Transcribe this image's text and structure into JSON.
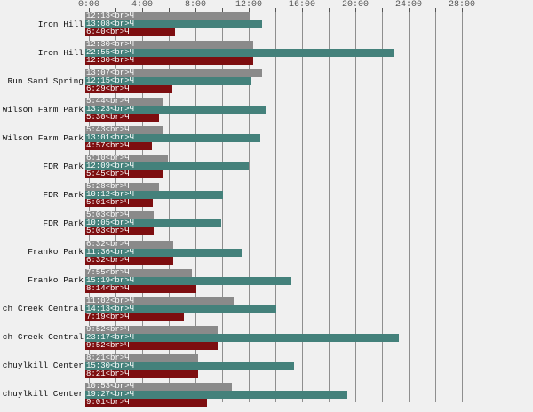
{
  "chart_data": {
    "type": "bar",
    "orientation": "horizontal",
    "title": "",
    "xlabel": "",
    "ylabel": "",
    "x_axis": {
      "tick_labels": [
        "0:00",
        "4:00",
        "8:00",
        "12:00",
        "16:00",
        "20:00",
        "24:00",
        "28:00"
      ],
      "major_interval_hours": 4,
      "minor_interval_hours": 2,
      "xlim_hours": [
        0,
        28
      ],
      "grid": "on"
    },
    "bar_label_suffix": "<br>Ч",
    "rows": [
      {
        "category": "Iron Hill",
        "values": [
          "12:13",
          "13:08",
          "6:40"
        ]
      },
      {
        "category": "Iron Hill",
        "values": [
          "12:30",
          "22:55",
          "12:30"
        ]
      },
      {
        "category": "Run Sand Spring",
        "values": [
          "13:07",
          "12:15",
          "6:29"
        ]
      },
      {
        "category": "Wilson Farm Park",
        "values": [
          "5:44",
          "13:23",
          "5:30"
        ]
      },
      {
        "category": "Wilson Farm Park",
        "values": [
          "5:43",
          "13:01",
          "4:57"
        ]
      },
      {
        "category": "FDR Park",
        "values": [
          "6:10",
          "12:09",
          "5:45"
        ]
      },
      {
        "category": "FDR Park",
        "values": [
          "5:28",
          "10:12",
          "5:01"
        ]
      },
      {
        "category": "FDR Park",
        "values": [
          "5:03",
          "10:05",
          "5:03"
        ]
      },
      {
        "category": "Franko Park",
        "values": [
          "6:32",
          "11:36",
          "6:32"
        ]
      },
      {
        "category": "Franko Park",
        "values": [
          "7:55",
          "15:19",
          "8:14"
        ]
      },
      {
        "category": "ch Creek Central",
        "values": [
          "11:02",
          "14:13",
          "7:19"
        ]
      },
      {
        "category": "ch Creek Central",
        "values": [
          "9:52",
          "23:17",
          "9:52"
        ]
      },
      {
        "category": "chuylkill Center",
        "values": [
          "8:21",
          "15:30",
          "8:21"
        ]
      },
      {
        "category": "chuylkill Center",
        "values": [
          "10:53",
          "19:27",
          "9:01"
        ]
      }
    ],
    "series": [
      {
        "name": "bar-1",
        "color": "#8a8a8a"
      },
      {
        "name": "bar-2",
        "color": "#44817b"
      },
      {
        "name": "bar-3",
        "color": "#7d0e10"
      }
    ],
    "colors": {
      "background": "#f0f0f0",
      "gridline": "#8f8f8f",
      "axis_text": "#555555",
      "category_text": "#111111",
      "bar_label_text": "#ffffff"
    }
  }
}
